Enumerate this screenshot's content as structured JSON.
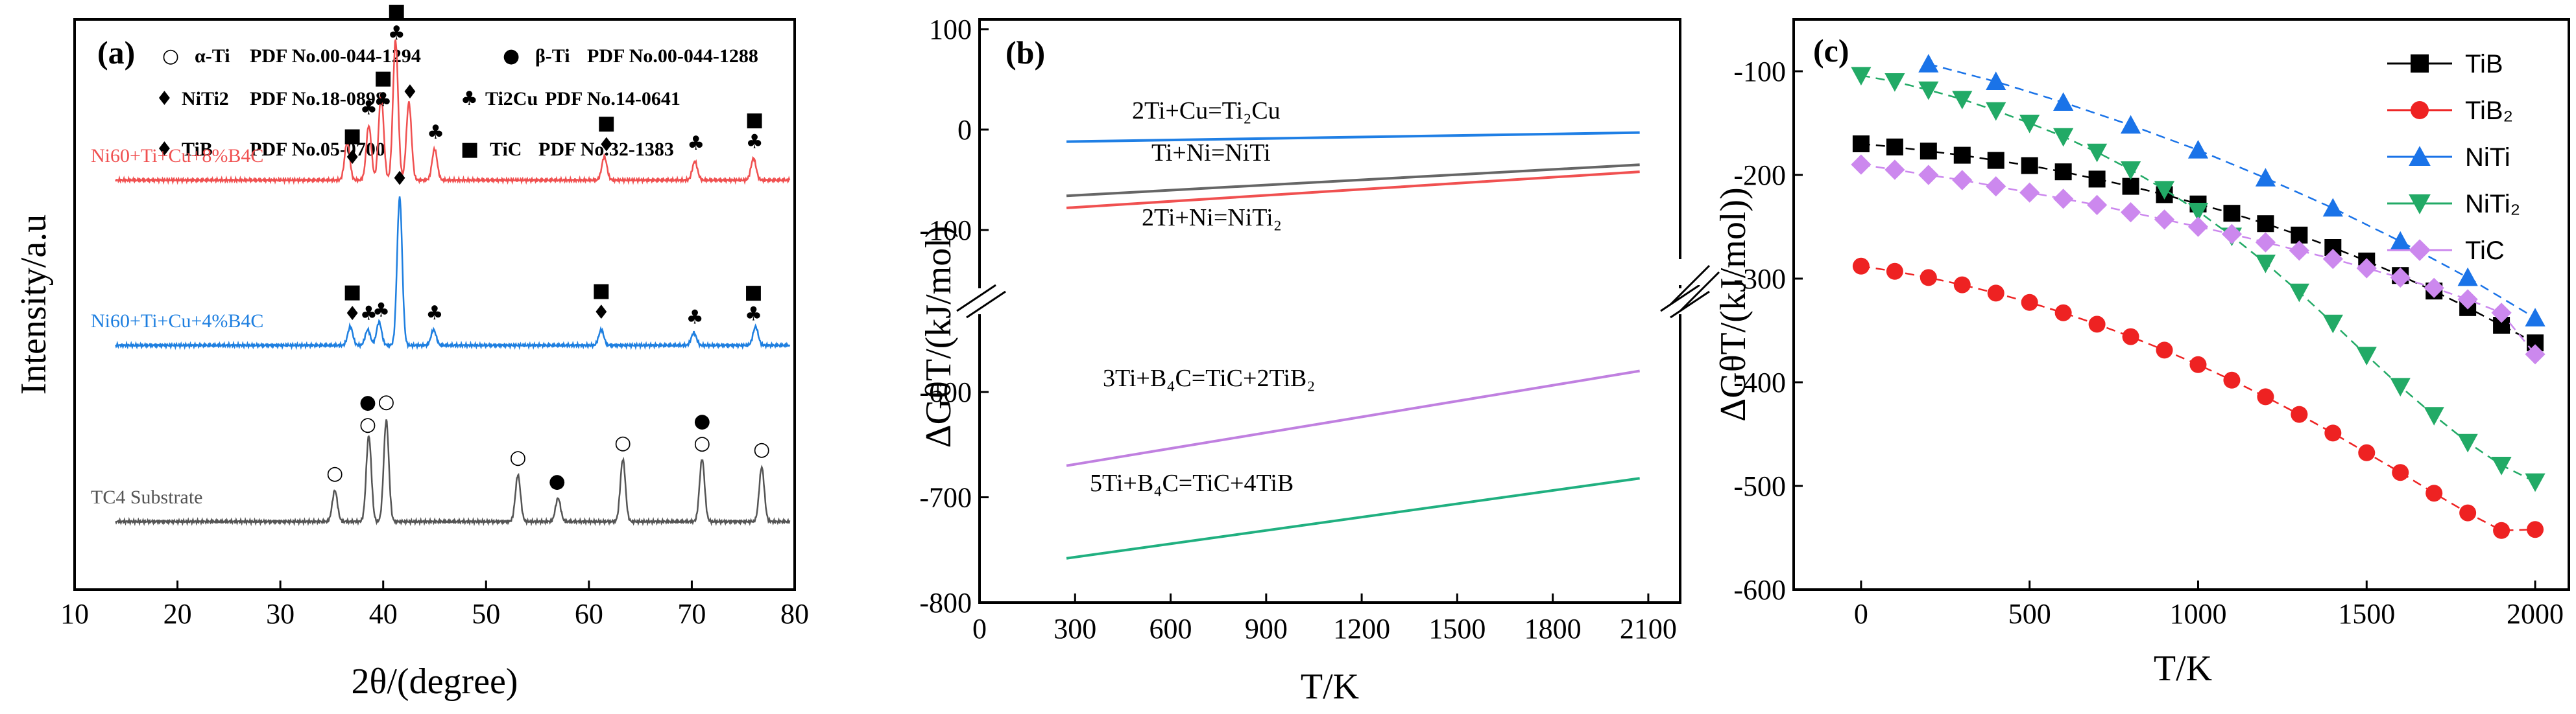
{
  "chart_data": [
    {
      "panel": "(a)",
      "type": "line",
      "xlabel": "2θ/(degree)",
      "ylabel": "Intensity/a.u",
      "xlim": [
        10,
        80
      ],
      "xticks": [
        10,
        20,
        30,
        40,
        50,
        60,
        70,
        80
      ],
      "legend": [
        {
          "symbol": "○",
          "phase": "α-Ti",
          "pdf": "PDF No.00-044-1294"
        },
        {
          "symbol": "●",
          "phase": "β-Ti",
          "pdf": "PDF No.00-044-1288"
        },
        {
          "symbol": "♦",
          "phase": "NiTi2",
          "pdf": "PDF No.18-0898"
        },
        {
          "symbol": "♣",
          "phase": "Ti2Cu",
          "pdf": "PDF No.14-0641"
        },
        {
          "symbol": "♦",
          "phase": "TiB",
          "pdf": "PDF No.05-0700"
        },
        {
          "symbol": "■",
          "phase": "TiC",
          "pdf": "PDF No.32-1383"
        }
      ],
      "series": [
        {
          "name": "Ni60+Ti+Cu+8%B4C",
          "color": "#f05050",
          "baseline": 0.72,
          "peaks": [
            [
              36.5,
              0.25
            ],
            [
              38.6,
              0.35
            ],
            [
              39.8,
              0.55
            ],
            [
              41.2,
              0.9
            ],
            [
              42.5,
              0.5
            ],
            [
              45.0,
              0.2
            ],
            [
              61.5,
              0.15
            ],
            [
              70.3,
              0.12
            ],
            [
              76.0,
              0.14
            ]
          ],
          "markers": [
            {
              "x": 37.0,
              "symbols": [
                "■",
                "♦"
              ]
            },
            {
              "x": 38.6,
              "symbols": [
                "♣"
              ]
            },
            {
              "x": 40.0,
              "symbols": [
                "■",
                "♣"
              ]
            },
            {
              "x": 41.3,
              "symbols": [
                "■",
                "♣"
              ]
            },
            {
              "x": 42.6,
              "symbols": [
                "♦"
              ]
            },
            {
              "x": 45.1,
              "symbols": [
                "♣"
              ]
            },
            {
              "x": 61.7,
              "symbols": [
                "■",
                "♦"
              ]
            },
            {
              "x": 70.4,
              "symbols": [
                "♣"
              ]
            },
            {
              "x": 76.1,
              "symbols": [
                "■",
                "♣"
              ]
            }
          ]
        },
        {
          "name": "Ni60+Ti+Cu+4%B4C",
          "color": "#1e7fe0",
          "baseline": 0.42,
          "peaks": [
            [
              36.8,
              0.12
            ],
            [
              38.5,
              0.1
            ],
            [
              39.6,
              0.15
            ],
            [
              41.6,
              0.95
            ],
            [
              44.9,
              0.1
            ],
            [
              61.2,
              0.1
            ],
            [
              70.2,
              0.08
            ],
            [
              76.2,
              0.12
            ]
          ],
          "markers": [
            {
              "x": 37.0,
              "symbols": [
                "■",
                "♦"
              ]
            },
            {
              "x": 38.6,
              "symbols": [
                "♣"
              ]
            },
            {
              "x": 39.8,
              "symbols": [
                "♣"
              ]
            },
            {
              "x": 41.6,
              "symbols": [
                "♦"
              ]
            },
            {
              "x": 45.0,
              "symbols": [
                "♣"
              ]
            },
            {
              "x": 61.2,
              "symbols": [
                "■",
                "♦"
              ]
            },
            {
              "x": 70.3,
              "symbols": [
                "♣"
              ]
            },
            {
              "x": 76.0,
              "symbols": [
                "■",
                "♣"
              ]
            }
          ]
        },
        {
          "name": "TC4 Substrate",
          "color": "#555555",
          "baseline": 0.1,
          "peaks": [
            [
              35.3,
              0.2
            ],
            [
              38.6,
              0.55
            ],
            [
              40.3,
              0.65
            ],
            [
              53.1,
              0.3
            ],
            [
              57.0,
              0.15
            ],
            [
              63.3,
              0.4
            ],
            [
              71.0,
              0.4
            ],
            [
              76.8,
              0.35
            ]
          ],
          "markers": [
            {
              "x": 35.3,
              "symbols": [
                "○"
              ]
            },
            {
              "x": 38.5,
              "symbols": [
                "●",
                "○"
              ]
            },
            {
              "x": 40.3,
              "symbols": [
                "○"
              ]
            },
            {
              "x": 53.1,
              "symbols": [
                "○"
              ]
            },
            {
              "x": 56.9,
              "symbols": [
                "●"
              ]
            },
            {
              "x": 63.3,
              "symbols": [
                "○"
              ]
            },
            {
              "x": 71.0,
              "symbols": [
                "●",
                "○"
              ]
            },
            {
              "x": 76.8,
              "symbols": [
                "○"
              ]
            }
          ]
        }
      ]
    },
    {
      "panel": "(b)",
      "type": "line",
      "xlabel": "T/K",
      "ylabel": "ΔGθT/(kJ/mol)",
      "xlim": [
        0,
        2200
      ],
      "xticks": [
        0,
        300,
        600,
        900,
        1200,
        1500,
        1800,
        2100
      ],
      "yticks": [
        100,
        0,
        -100,
        -600,
        -700,
        -800
      ],
      "broken_axis": {
        "upper": [
          -150,
          100
        ],
        "lower": [
          -800,
          -500
        ]
      },
      "series": [
        {
          "name": "2Ti+Cu=Ti2Cu",
          "color": "#1f7fe5",
          "x": [
            273,
            2073
          ],
          "y": [
            -12,
            -3
          ]
        },
        {
          "name": "Ti+Ni=NiTi",
          "color": "#666666",
          "x": [
            273,
            2073
          ],
          "y": [
            -66,
            -35
          ]
        },
        {
          "name": "2Ti+Ni=NiTi2",
          "color": "#f05050",
          "x": [
            273,
            2073
          ],
          "y": [
            -78,
            -42
          ]
        },
        {
          "name": "3Ti+B4C=TiC+2TiB2",
          "color": "#c080e0",
          "x": [
            273,
            2073
          ],
          "y": [
            -670,
            -580
          ]
        },
        {
          "name": "5Ti+B4C=TiC+4TiB",
          "color": "#20b080",
          "x": [
            273,
            2073
          ],
          "y": [
            -758,
            -682
          ]
        }
      ],
      "labels": {
        "ti2cu": "2Ti+Cu=Ti₂Cu",
        "niti": "Ti+Ni=NiTi",
        "niti2": "2Ti+Ni=NiTi₂",
        "tib2": "3Ti+B₄C=TiC+2TiB₂",
        "tib": "5Ti+B₄C=TiC+4TiB"
      }
    },
    {
      "panel": "(c)",
      "type": "scatter",
      "xlabel": "T/K",
      "ylabel": "ΔGθT/(kJ/mol))",
      "xlim": [
        -200,
        2100
      ],
      "ylim": [
        -600,
        -50
      ],
      "xticks": [
        0,
        500,
        1000,
        1500,
        2000
      ],
      "yticks": [
        -100,
        -200,
        -300,
        -400,
        -500,
        -600
      ],
      "series": [
        {
          "name": "TiB",
          "color": "#000000",
          "marker": "square",
          "x": [
            0,
            100,
            200,
            300,
            400,
            500,
            600,
            700,
            800,
            900,
            1000,
            1100,
            1200,
            1300,
            1400,
            1500,
            1600,
            1700,
            1800,
            1900,
            2000
          ],
          "y": [
            -170,
            -173,
            -177,
            -181,
            -186,
            -191,
            -197,
            -204,
            -211,
            -219,
            -228,
            -237,
            -247,
            -258,
            -270,
            -283,
            -297,
            -312,
            -328,
            -345,
            -362
          ]
        },
        {
          "name": "TiB2",
          "color": "#ee2222",
          "marker": "circle",
          "x": [
            0,
            100,
            200,
            300,
            400,
            500,
            600,
            700,
            800,
            900,
            1000,
            1100,
            1200,
            1300,
            1400,
            1500,
            1600,
            1700,
            1800,
            1900,
            2000
          ],
          "y": [
            -288,
            -293,
            -299,
            -306,
            -314,
            -323,
            -333,
            -344,
            -356,
            -369,
            -383,
            -398,
            -414,
            -431,
            -449,
            -468,
            -487,
            -507,
            -526,
            -543,
            -542
          ]
        },
        {
          "name": "NiTi",
          "color": "#1a73e8",
          "marker": "triangle-up",
          "x": [
            200,
            400,
            600,
            800,
            1000,
            1200,
            1400,
            1600,
            1800,
            2000
          ],
          "y": [
            -93,
            -110,
            -130,
            -152,
            -176,
            -203,
            -232,
            -264,
            -299,
            -338
          ]
        },
        {
          "name": "NiTi2",
          "color": "#22aa66",
          "marker": "triangle-down",
          "x": [
            0,
            100,
            200,
            300,
            400,
            500,
            600,
            700,
            800,
            900,
            1000,
            1100,
            1200,
            1300,
            1400,
            1500,
            1600,
            1700,
            1800,
            1900,
            2000
          ],
          "y": [
            -104,
            -110,
            -118,
            -127,
            -138,
            -150,
            -163,
            -178,
            -195,
            -214,
            -235,
            -259,
            -285,
            -313,
            -343,
            -374,
            -404,
            -432,
            -458,
            -480,
            -496
          ]
        },
        {
          "name": "TiC",
          "color": "#cc88ee",
          "marker": "diamond",
          "x": [
            0,
            100,
            200,
            300,
            400,
            500,
            600,
            700,
            800,
            900,
            1000,
            1100,
            1200,
            1300,
            1400,
            1500,
            1600,
            1700,
            1800,
            1900,
            2000
          ],
          "y": [
            -190,
            -195,
            -200,
            -205,
            -211,
            -217,
            -223,
            -229,
            -236,
            -243,
            -250,
            -257,
            -265,
            -273,
            -281,
            -290,
            -299,
            -309,
            -320,
            -333,
            -373
          ]
        }
      ],
      "legend_labels": [
        "TiB",
        "TiB₂",
        "NiTi",
        "NiTi₂",
        "TiC"
      ]
    }
  ]
}
